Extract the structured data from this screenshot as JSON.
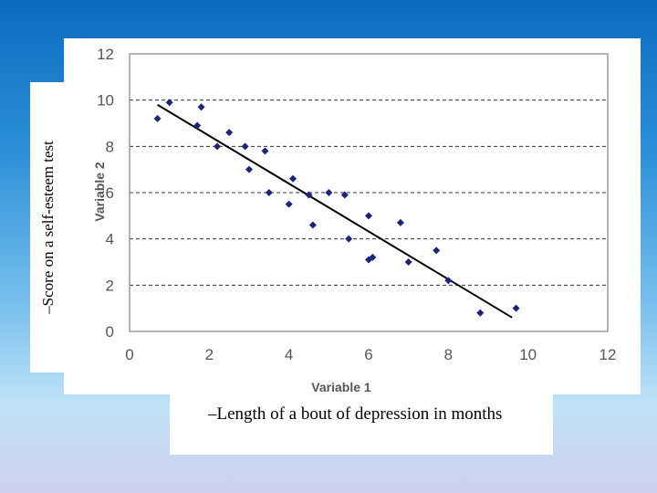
{
  "labels": {
    "y_text": "–Score on a self-esteem test",
    "x_text": "–Length of a bout of depression in months"
  },
  "chart_data": {
    "type": "scatter",
    "xlabel": "Variable 1",
    "ylabel": "Variable 2",
    "xlim": [
      0,
      12
    ],
    "ylim": [
      0,
      12
    ],
    "xticks": [
      0,
      2,
      4,
      6,
      8,
      10,
      12
    ],
    "yticks": [
      0,
      2,
      4,
      6,
      8,
      10,
      12
    ],
    "grid": "horizontal-dashed",
    "point_color": "#1a237e",
    "line_color": "#000000",
    "points": [
      [
        0.7,
        9.2
      ],
      [
        1.0,
        9.9
      ],
      [
        1.7,
        8.9
      ],
      [
        1.8,
        9.7
      ],
      [
        2.2,
        8.0
      ],
      [
        2.5,
        8.6
      ],
      [
        2.9,
        8.0
      ],
      [
        3.0,
        7.0
      ],
      [
        3.4,
        7.8
      ],
      [
        3.5,
        6.0
      ],
      [
        4.0,
        5.5
      ],
      [
        4.1,
        6.6
      ],
      [
        4.5,
        5.9
      ],
      [
        4.6,
        4.6
      ],
      [
        5.0,
        6.0
      ],
      [
        5.4,
        5.9
      ],
      [
        5.5,
        4.0
      ],
      [
        6.0,
        5.0
      ],
      [
        6.0,
        3.1
      ],
      [
        6.1,
        3.2
      ],
      [
        6.8,
        4.7
      ],
      [
        7.0,
        3.0
      ],
      [
        7.7,
        3.5
      ],
      [
        8.0,
        2.2
      ],
      [
        8.8,
        0.8
      ],
      [
        9.7,
        1.0
      ]
    ],
    "trendline": [
      [
        0.7,
        9.8
      ],
      [
        9.6,
        0.6
      ]
    ]
  }
}
